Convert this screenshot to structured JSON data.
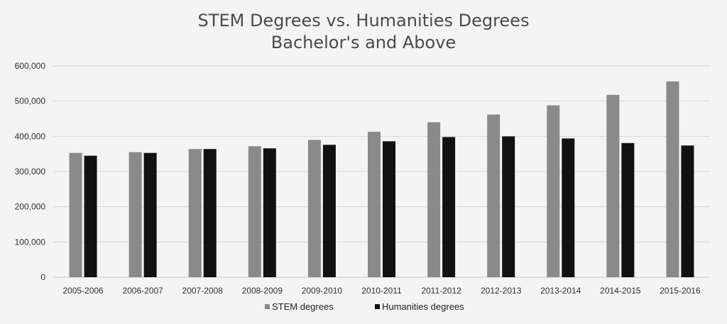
{
  "chart_data": {
    "type": "bar",
    "title": "STEM Degrees vs. Humanities Degrees",
    "subtitle": "Bachelor's and Above",
    "categories": [
      "2005-2006",
      "2006-2007",
      "2007-2008",
      "2008-2009",
      "2009-2010",
      "2010-2011",
      "2011-2012",
      "2012-2013",
      "2013-2014",
      "2014-2015",
      "2015-2016"
    ],
    "series": [
      {
        "name": "STEM degrees",
        "color": "#8a8a8a",
        "values": [
          353000,
          355000,
          364000,
          372000,
          390000,
          413000,
          440000,
          462000,
          488000,
          518000,
          556000
        ]
      },
      {
        "name": "Humanities degrees",
        "color": "#111111",
        "values": [
          345000,
          353000,
          364000,
          366000,
          376000,
          386000,
          398000,
          400000,
          394000,
          381000,
          374000
        ]
      }
    ],
    "yticks": [
      "0",
      "100,000",
      "200,000",
      "300,000",
      "400,000",
      "500,000",
      "600,000"
    ],
    "ylim": [
      0,
      600000
    ],
    "grid": true,
    "legend_position": "bottom"
  }
}
